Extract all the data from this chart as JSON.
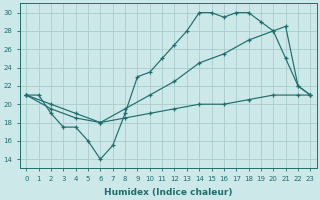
{
  "bg_color": "#cce8e8",
  "line_color": "#1e6e6e",
  "grid_color": "#b0d8d8",
  "xlabel": "Humidex (Indice chaleur)",
  "xlim": [
    -0.5,
    23.5
  ],
  "ylim": [
    13.0,
    31.0
  ],
  "yticks": [
    14,
    16,
    18,
    20,
    22,
    24,
    26,
    28,
    30
  ],
  "xticks": [
    0,
    1,
    2,
    3,
    4,
    5,
    6,
    7,
    8,
    9,
    10,
    11,
    12,
    13,
    14,
    15,
    16,
    17,
    18,
    19,
    20,
    21,
    22,
    23
  ],
  "s1_x": [
    0,
    1,
    2,
    3,
    4,
    5,
    6,
    7,
    8,
    9,
    10,
    11,
    12,
    13,
    14,
    15,
    16,
    17,
    18,
    19,
    20,
    21,
    22,
    23
  ],
  "s1_y": [
    21,
    21,
    19,
    17.5,
    17.5,
    16,
    14,
    15.5,
    19,
    23,
    23.5,
    25,
    26.5,
    28,
    30,
    30,
    29.5,
    30,
    30,
    29,
    28,
    25,
    22,
    21
  ],
  "s2_x": [
    0,
    2,
    4,
    6,
    8,
    10,
    12,
    14,
    16,
    18,
    20,
    21,
    22,
    23
  ],
  "s2_y": [
    21,
    20,
    19,
    18,
    19.5,
    21,
    22.5,
    24.5,
    25.5,
    27,
    28,
    28.5,
    22,
    21
  ],
  "s3_x": [
    0,
    2,
    4,
    6,
    8,
    10,
    12,
    14,
    16,
    18,
    20,
    22,
    23
  ],
  "s3_y": [
    21,
    19.5,
    18.5,
    18,
    18.5,
    19,
    19.5,
    20,
    20,
    20.5,
    21,
    21,
    21
  ]
}
